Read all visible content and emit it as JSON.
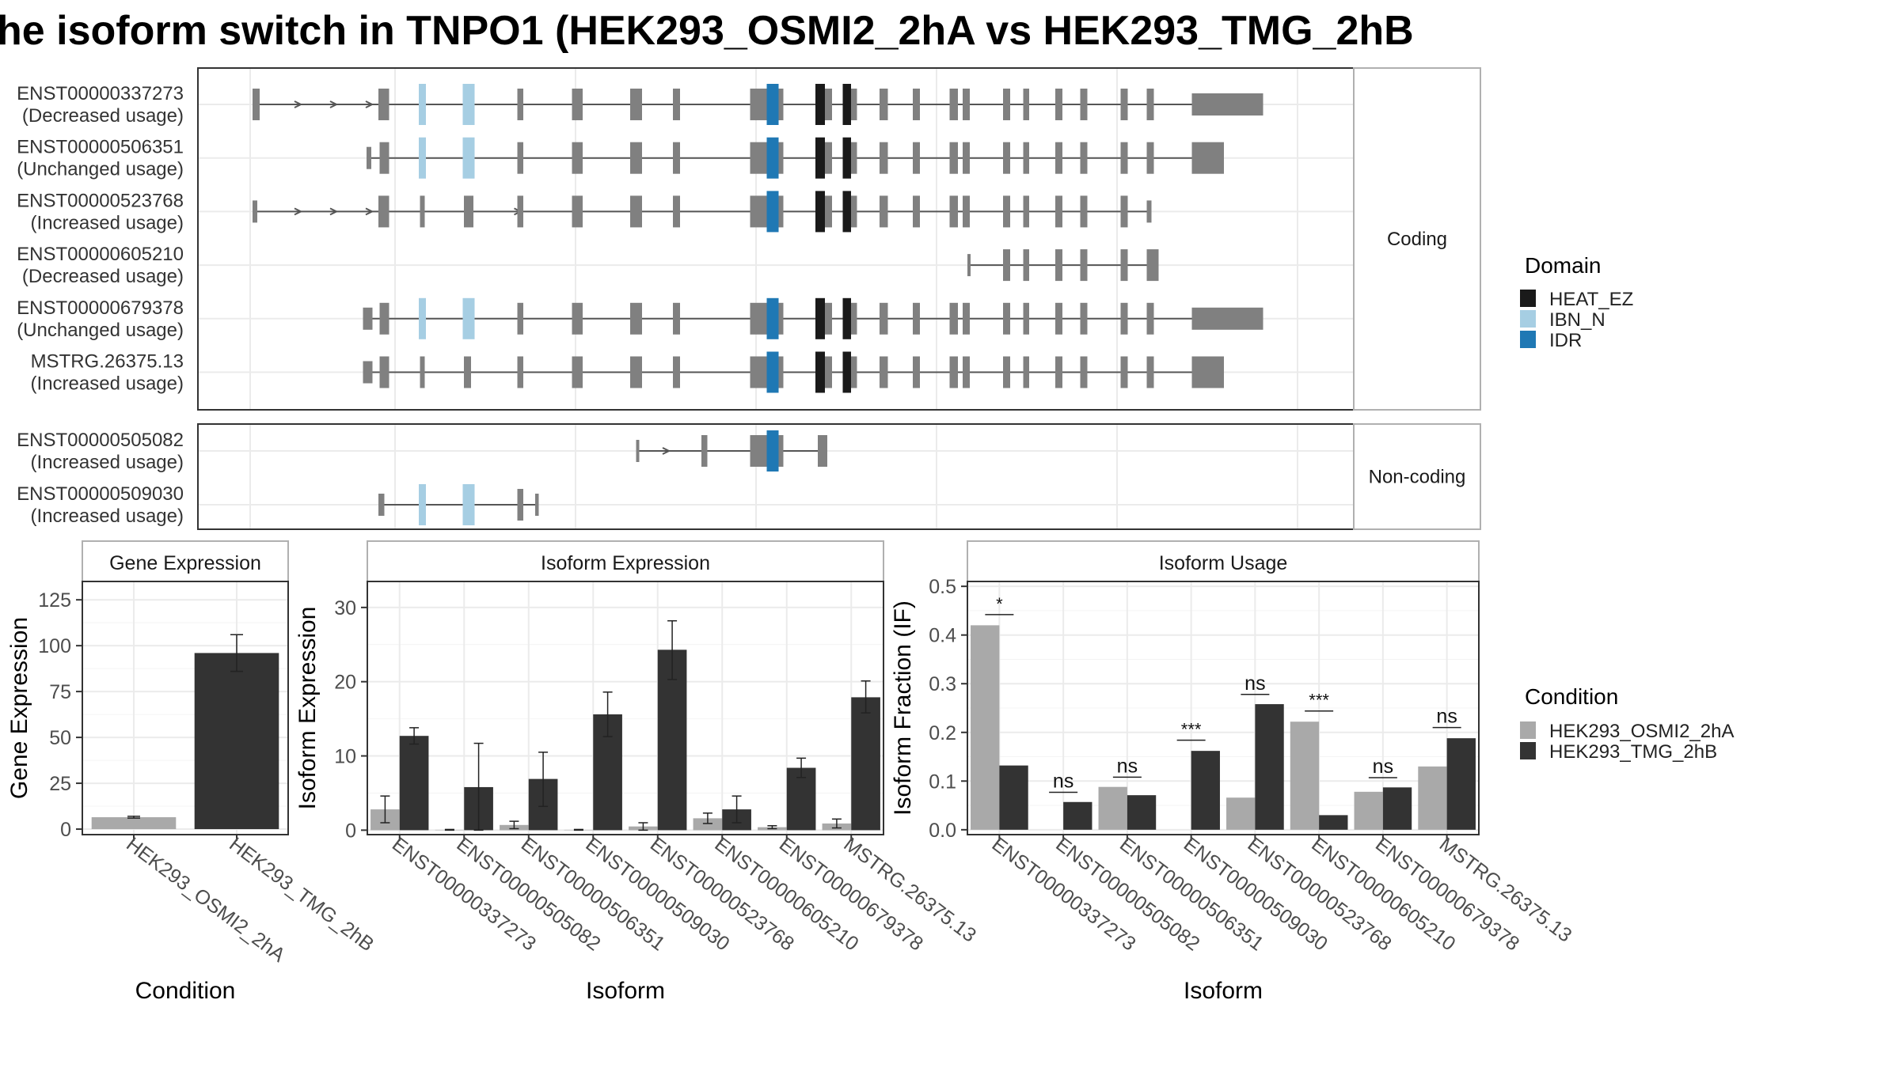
{
  "title": "he isoform switch in TNPO1 (HEK293_OSMI2_2hA vs HEK293_TMG_2hB",
  "colors": {
    "cond_a": "#a9a9a9",
    "cond_b": "#333333",
    "exon": "#808080",
    "intron": "#555555",
    "panel_border": "#333333",
    "grid": "#ebebeb",
    "strip_bg": "#ffffff"
  },
  "transcripts": {
    "facets": [
      {
        "label": "Coding",
        "rows": [
          {
            "id": "ENST00000337273",
            "usage": "(Decreased usage)",
            "start": 2,
            "end": 853,
            "exons": [
              [
                2,
                8
              ],
              [
                108,
                117
              ],
              [
                143,
                147
              ],
              [
                180,
                188
              ],
              [
                225,
                230
              ],
              [
                271,
                280
              ],
              [
                320,
                330
              ],
              [
                356,
                362
              ],
              [
                421,
                449
              ],
              [
                478,
                490
              ],
              [
                499,
                511
              ],
              [
                530,
                537
              ],
              [
                558,
                564
              ],
              [
                589,
                596
              ],
              [
                600,
                606
              ],
              [
                634,
                640
              ],
              [
                651,
                656
              ],
              [
                678,
                684
              ],
              [
                699,
                705
              ],
              [
                733,
                739
              ],
              [
                755,
                761
              ],
              [
                793,
                853
              ]
            ],
            "domains": [
              [
                142,
                148,
                "IBN_N"
              ],
              [
                179,
                189,
                "IBN_N"
              ],
              [
                435,
                445,
                "IDR"
              ],
              [
                476,
                484,
                "HEAT_EZ"
              ],
              [
                499,
                506,
                "HEAT_EZ"
              ]
            ],
            "arrows": [
              40,
              70,
              100
            ]
          },
          {
            "id": "ENST00000506351",
            "usage": "(Unchanged usage)",
            "start": 98,
            "end": 820,
            "exons": [
              [
                98,
                102
              ],
              [
                109,
                117
              ],
              [
                143,
                147
              ],
              [
                180,
                188
              ],
              [
                225,
                230
              ],
              [
                271,
                280
              ],
              [
                320,
                330
              ],
              [
                356,
                362
              ],
              [
                421,
                449
              ],
              [
                478,
                490
              ],
              [
                499,
                511
              ],
              [
                530,
                537
              ],
              [
                558,
                564
              ],
              [
                589,
                596
              ],
              [
                600,
                606
              ],
              [
                634,
                640
              ],
              [
                651,
                656
              ],
              [
                678,
                684
              ],
              [
                699,
                705
              ],
              [
                733,
                739
              ],
              [
                755,
                761
              ],
              [
                793,
                820
              ]
            ],
            "domains": [
              [
                142,
                148,
                "IBN_N"
              ],
              [
                179,
                189,
                "IBN_N"
              ],
              [
                435,
                445,
                "IDR"
              ],
              [
                476,
                484,
                "HEAT_EZ"
              ],
              [
                499,
                506,
                "HEAT_EZ"
              ]
            ],
            "arrows": []
          },
          {
            "id": "ENST00000523768",
            "usage": "(Increased usage)",
            "start": 2,
            "end": 759,
            "exons": [
              [
                2,
                6
              ],
              [
                108,
                117
              ],
              [
                143,
                147
              ],
              [
                180,
                188
              ],
              [
                225,
                230
              ],
              [
                271,
                280
              ],
              [
                320,
                330
              ],
              [
                356,
                362
              ],
              [
                421,
                449
              ],
              [
                478,
                490
              ],
              [
                499,
                511
              ],
              [
                530,
                537
              ],
              [
                558,
                564
              ],
              [
                589,
                596
              ],
              [
                600,
                606
              ],
              [
                634,
                640
              ],
              [
                651,
                656
              ],
              [
                678,
                684
              ],
              [
                699,
                705
              ],
              [
                733,
                739
              ],
              [
                755,
                759
              ]
            ],
            "domains": [
              [
                435,
                445,
                "IDR"
              ],
              [
                476,
                484,
                "HEAT_EZ"
              ],
              [
                499,
                506,
                "HEAT_EZ"
              ]
            ],
            "arrows": [
              40,
              70,
              100,
              185,
              225
            ]
          },
          {
            "id": "ENST00000605210",
            "usage": "(Decreased usage)",
            "start": 604,
            "end": 765,
            "exons": [
              [
                604,
                606
              ],
              [
                634,
                640
              ],
              [
                651,
                656
              ],
              [
                678,
                684
              ],
              [
                699,
                705
              ],
              [
                733,
                739
              ],
              [
                755,
                765
              ]
            ],
            "domains": [],
            "arrows": []
          },
          {
            "id": "ENST00000679378",
            "usage": "(Unchanged usage)",
            "start": 95,
            "end": 853,
            "exons": [
              [
                95,
                103
              ],
              [
                109,
                117
              ],
              [
                143,
                147
              ],
              [
                180,
                188
              ],
              [
                225,
                230
              ],
              [
                271,
                280
              ],
              [
                320,
                330
              ],
              [
                356,
                362
              ],
              [
                421,
                449
              ],
              [
                478,
                490
              ],
              [
                499,
                511
              ],
              [
                530,
                537
              ],
              [
                558,
                564
              ],
              [
                589,
                596
              ],
              [
                600,
                606
              ],
              [
                634,
                640
              ],
              [
                651,
                656
              ],
              [
                678,
                684
              ],
              [
                699,
                705
              ],
              [
                733,
                739
              ],
              [
                755,
                761
              ],
              [
                793,
                853
              ]
            ],
            "domains": [
              [
                142,
                148,
                "IBN_N"
              ],
              [
                179,
                189,
                "IBN_N"
              ],
              [
                435,
                445,
                "IDR"
              ],
              [
                476,
                484,
                "HEAT_EZ"
              ],
              [
                499,
                506,
                "HEAT_EZ"
              ]
            ],
            "arrows": []
          },
          {
            "id": "MSTRG.26375.13",
            "usage": "(Increased usage)",
            "start": 95,
            "end": 820,
            "exons": [
              [
                95,
                103
              ],
              [
                109,
                117
              ],
              [
                143,
                147
              ],
              [
                180,
                186
              ],
              [
                225,
                230
              ],
              [
                271,
                280
              ],
              [
                320,
                330
              ],
              [
                356,
                362
              ],
              [
                421,
                449
              ],
              [
                478,
                490
              ],
              [
                499,
                511
              ],
              [
                530,
                537
              ],
              [
                558,
                564
              ],
              [
                589,
                596
              ],
              [
                600,
                606
              ],
              [
                634,
                640
              ],
              [
                651,
                656
              ],
              [
                678,
                684
              ],
              [
                699,
                705
              ],
              [
                733,
                739
              ],
              [
                755,
                761
              ],
              [
                793,
                820
              ]
            ],
            "domains": [
              [
                435,
                445,
                "IDR"
              ],
              [
                476,
                484,
                "HEAT_EZ"
              ],
              [
                499,
                506,
                "HEAT_EZ"
              ]
            ],
            "arrows": []
          }
        ]
      },
      {
        "label": "Non-coding",
        "rows": [
          {
            "id": "ENST00000505082",
            "usage": "(Increased usage)",
            "start": 325,
            "end": 486,
            "exons": [
              [
                325,
                327
              ],
              [
                380,
                385
              ],
              [
                421,
                449
              ],
              [
                478,
                486
              ]
            ],
            "domains": [
              [
                435,
                445,
                "IDR"
              ]
            ],
            "arrows": [
              350
            ]
          },
          {
            "id": "ENST00000509030",
            "usage": "(Increased usage)",
            "start": 108,
            "end": 243,
            "exons": [
              [
                108,
                113
              ],
              [
                143,
                147
              ],
              [
                180,
                188
              ],
              [
                225,
                230
              ],
              [
                240,
                243
              ]
            ],
            "domains": [
              [
                142,
                148,
                "IBN_N"
              ],
              [
                179,
                189,
                "IBN_N"
              ]
            ],
            "arrows": []
          }
        ]
      }
    ],
    "x_gridlines": [
      0,
      122,
      274,
      426,
      578,
      730,
      882
    ]
  },
  "domain_legend": {
    "title": "Domain",
    "items": [
      {
        "name": "HEAT_EZ",
        "color": "#1a1a1a"
      },
      {
        "name": "IBN_N",
        "color": "#a6cee3"
      },
      {
        "name": "IDR",
        "color": "#1f78b4"
      }
    ]
  },
  "condition_legend": {
    "title": "Condition",
    "items": [
      {
        "name": "HEK293_OSMI2_2hA",
        "color": "#a9a9a9"
      },
      {
        "name": "HEK293_TMG_2hB",
        "color": "#333333"
      }
    ]
  },
  "chart_data": [
    {
      "type": "bar",
      "title": "Gene Expression",
      "xlabel": "Condition",
      "ylabel": "Gene Expression",
      "categories": [
        "HEK293_OSMI2_2hA",
        "HEK293_TMG_2hB"
      ],
      "values": [
        6.5,
        96
      ],
      "errors": [
        [
          6,
          7
        ],
        [
          86,
          106
        ]
      ],
      "ylim": [
        -3,
        135
      ],
      "yticks": [
        0,
        25,
        50,
        75,
        100,
        125
      ]
    },
    {
      "type": "bar",
      "title": "Isoform Expression",
      "xlabel": "Isoform",
      "ylabel": "Isoform Expression",
      "categories": [
        "ENST00000337273",
        "ENST00000505082",
        "ENST00000506351",
        "ENST00000509030",
        "ENST00000523768",
        "ENST00000605210",
        "ENST00000679378",
        "MSTRG.26375.13"
      ],
      "series": [
        {
          "name": "HEK293_OSMI2_2hA",
          "values": [
            2.8,
            0.05,
            0.7,
            0.05,
            0.5,
            1.6,
            0.4,
            0.9
          ],
          "errors": [
            [
              1,
              4.6
            ],
            [
              0,
              0.1
            ],
            [
              0.2,
              1.2
            ],
            [
              0,
              0.1
            ],
            [
              0,
              1
            ],
            [
              0.9,
              2.3
            ],
            [
              0.2,
              0.6
            ],
            [
              0.3,
              1.5
            ]
          ]
        },
        {
          "name": "HEK293_TMG_2hB",
          "values": [
            12.7,
            5.8,
            6.9,
            15.6,
            24.3,
            2.8,
            8.4,
            17.9
          ],
          "errors": [
            [
              11.6,
              13.8
            ],
            [
              0,
              11.7
            ],
            [
              3.2,
              10.5
            ],
            [
              12.6,
              18.6
            ],
            [
              20.3,
              28.2
            ],
            [
              1,
              4.6
            ],
            [
              7.1,
              9.7
            ],
            [
              15.8,
              20.1
            ]
          ]
        }
      ],
      "ylim": [
        -0.6,
        33.5
      ],
      "yticks": [
        0,
        10,
        20,
        30
      ]
    },
    {
      "type": "bar",
      "title": "Isoform Usage",
      "xlabel": "Isoform",
      "ylabel": "Isoform Fraction (IF)",
      "categories": [
        "ENST00000337273",
        "ENST00000505082",
        "ENST00000506351",
        "ENST00000509030",
        "ENST00000523768",
        "ENST00000605210",
        "ENST00000679378",
        "MSTRG.26375.13"
      ],
      "series": [
        {
          "name": "HEK293_OSMI2_2hA",
          "values": [
            0.42,
            0.0,
            0.088,
            0.0,
            0.066,
            0.222,
            0.078,
            0.13
          ]
        },
        {
          "name": "HEK293_TMG_2hB",
          "values": [
            0.132,
            0.057,
            0.071,
            0.162,
            0.258,
            0.03,
            0.087,
            0.188
          ]
        }
      ],
      "significance": [
        "*",
        "ns",
        "ns",
        "***",
        "ns",
        "***",
        "ns",
        "ns"
      ],
      "sig_heights": [
        0.442,
        0.077,
        0.108,
        0.184,
        0.278,
        0.244,
        0.107,
        0.21
      ],
      "ylim": [
        -0.01,
        0.51
      ],
      "yticks": [
        0.0,
        0.1,
        0.2,
        0.3,
        0.4,
        0.5
      ]
    }
  ]
}
